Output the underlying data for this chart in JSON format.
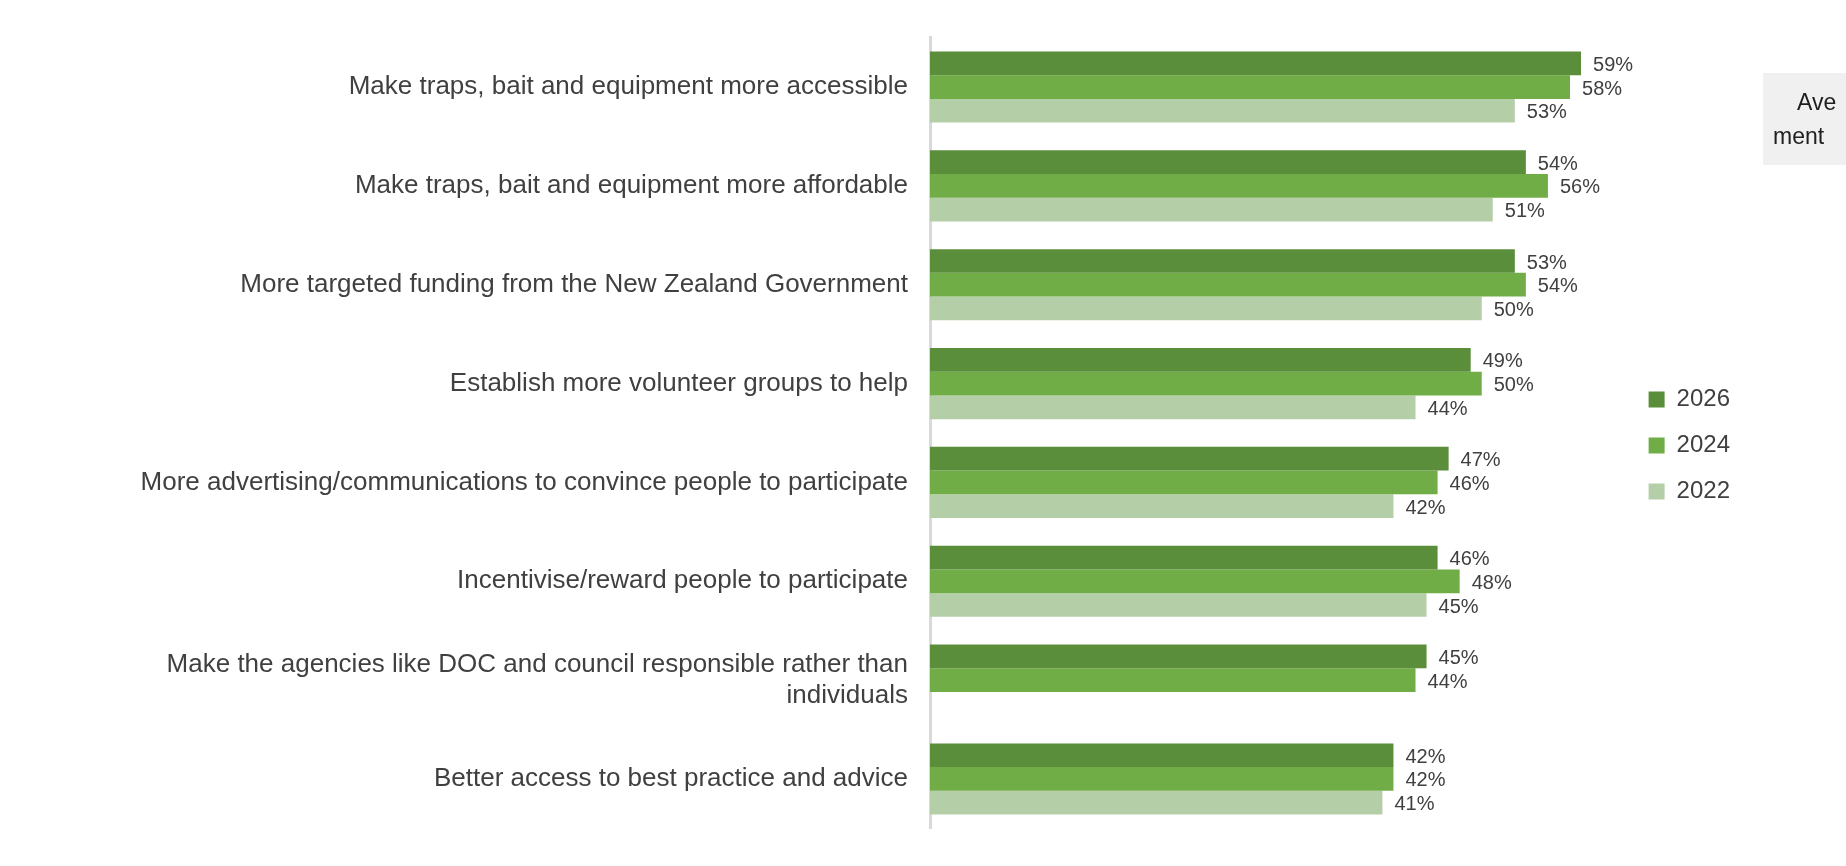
{
  "chart_data": {
    "type": "bar",
    "orientation": "horizontal",
    "categories": [
      "Make traps, bait and equipment more accessible",
      "Make traps, bait and equipment more affordable",
      "More targeted funding from the New Zealand Government",
      "Establish more volunteer groups to help",
      "More advertising/communications to convince people to participate",
      "Incentivise/reward people to participate",
      "Make the agencies like DOC and council responsible rather than individuals",
      "Better access to best practice and advice"
    ],
    "series": [
      {
        "name": "2026",
        "color": "#5a8e3a",
        "values": [
          59,
          54,
          53,
          49,
          47,
          46,
          45,
          42
        ],
        "value_labels": [
          "59%",
          "54%",
          "53%",
          "49%",
          "47%",
          "46%",
          "45%",
          "42%"
        ]
      },
      {
        "name": "2024",
        "color": "#70ad47",
        "values": [
          58,
          56,
          54,
          50,
          46,
          48,
          44,
          42
        ],
        "value_labels": [
          "58%",
          "56%",
          "54%",
          "50%",
          "46%",
          "48%",
          "44%",
          "42%"
        ]
      },
      {
        "name": "2022",
        "color": "#b4cfa8",
        "values": [
          53,
          51,
          50,
          44,
          42,
          45,
          null,
          41
        ],
        "value_labels": [
          "53%",
          "51%",
          "50%",
          "44%",
          "42%",
          "45%",
          null,
          "41%"
        ]
      }
    ],
    "legend": "right",
    "grid": false,
    "annotations": [
      "Ave",
      "ment"
    ]
  }
}
